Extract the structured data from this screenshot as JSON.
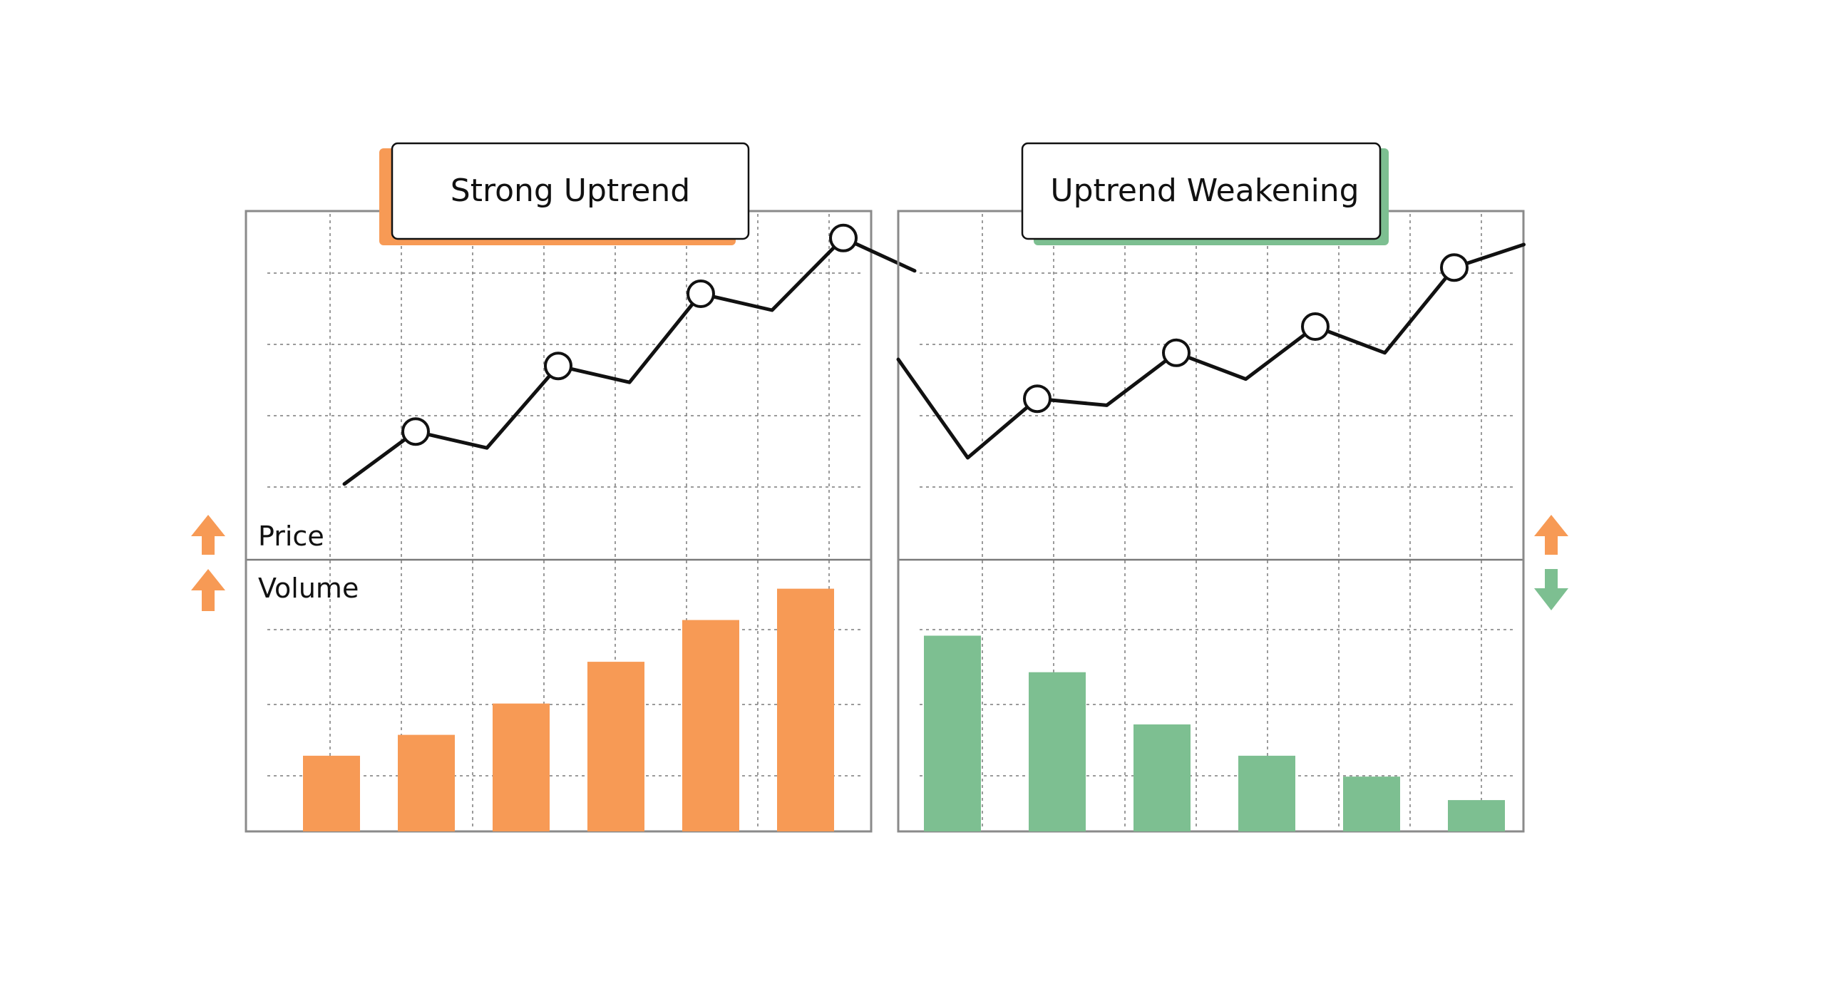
{
  "colors": {
    "orange": "#f79a55",
    "green": "#7dbf91",
    "line": "#111111"
  },
  "labels": {
    "price": "Price",
    "volume": "Volume"
  },
  "chart_data": [
    {
      "type": "line+bar",
      "title": "Strong Uptrend",
      "accent": "#f79a55",
      "price": {
        "x": [
          1,
          2,
          3,
          4,
          5,
          6,
          7,
          8,
          9
        ],
        "values": [
          22,
          38,
          33,
          58,
          53,
          80,
          75,
          97,
          87
        ],
        "markers": [
          1,
          3,
          5,
          7
        ],
        "ylim": [
          0,
          100
        ]
      },
      "volume": {
        "values": [
          29,
          37,
          49,
          65,
          81,
          93
        ],
        "ylim": [
          0,
          100
        ]
      },
      "indicators": {
        "price": "up",
        "volume": "up"
      }
    },
    {
      "type": "line+bar",
      "title": "Uptrend Weakening",
      "accent": "#7dbf91",
      "price": {
        "x": [
          0,
          1,
          2,
          3,
          4,
          5,
          6,
          7,
          8,
          9
        ],
        "values": [
          60,
          30,
          48,
          46,
          62,
          54,
          70,
          62,
          88,
          95
        ],
        "markers": [
          2,
          4,
          6,
          8
        ],
        "ylim": [
          0,
          100
        ]
      },
      "volume": {
        "values": [
          75,
          61,
          41,
          29,
          21,
          12
        ],
        "ylim": [
          0,
          100
        ]
      },
      "indicators": {
        "price": "up",
        "volume": "down"
      }
    }
  ]
}
